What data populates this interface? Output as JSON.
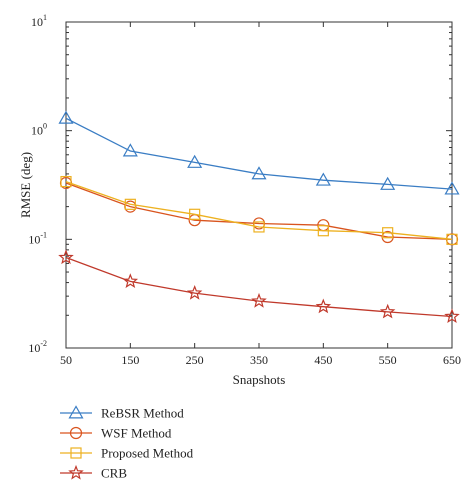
{
  "chart_data": {
    "type": "line",
    "xlabel": "Snapshots",
    "ylabel": "RMSE (deg)",
    "yscale": "log",
    "xlim": [
      50,
      650
    ],
    "ylim": [
      0.01,
      10
    ],
    "x": [
      50,
      150,
      250,
      350,
      450,
      550,
      650
    ],
    "x_ticks": [
      "50",
      "150",
      "250",
      "350",
      "450",
      "550",
      "650"
    ],
    "y_ticks": [
      {
        "value": 0.01,
        "base": "10",
        "exp": "-2"
      },
      {
        "value": 0.1,
        "base": "10",
        "exp": "-1"
      },
      {
        "value": 1,
        "base": "10",
        "exp": "0"
      },
      {
        "value": 10,
        "base": "10",
        "exp": "1"
      }
    ],
    "grid": false,
    "legend_position": "below",
    "series": [
      {
        "name": "ReBSR Method",
        "color": "#3a7dc4",
        "marker": "triangle",
        "values": [
          1.3,
          0.65,
          0.51,
          0.4,
          0.35,
          0.32,
          0.29
        ]
      },
      {
        "name": "WSF Method",
        "color": "#d9541e",
        "marker": "circle",
        "values": [
          0.33,
          0.2,
          0.15,
          0.14,
          0.135,
          0.105,
          0.1
        ]
      },
      {
        "name": "Proposed Method",
        "color": "#edb120",
        "marker": "square",
        "values": [
          0.34,
          0.21,
          0.17,
          0.13,
          0.12,
          0.115,
          0.1
        ]
      },
      {
        "name": "CRB",
        "color": "#c0392b",
        "marker": "star",
        "values": [
          0.068,
          0.041,
          0.032,
          0.027,
          0.024,
          0.0215,
          0.0195
        ]
      }
    ]
  }
}
